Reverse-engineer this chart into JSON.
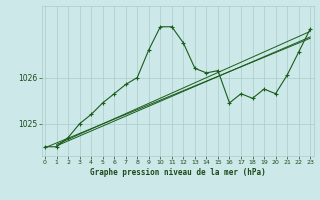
{
  "xlabel": "Graphe pression niveau de la mer (hPa)",
  "background_color": "#cce8e8",
  "grid_color": "#aacccc",
  "line_color": "#1a5c1a",
  "text_color": "#1a4a1a",
  "x_ticks": [
    0,
    1,
    2,
    3,
    4,
    5,
    6,
    7,
    8,
    9,
    10,
    11,
    12,
    13,
    14,
    15,
    16,
    17,
    18,
    19,
    20,
    21,
    22,
    23
  ],
  "y_ticks": [
    1025,
    1026
  ],
  "ylim": [
    1024.3,
    1027.55
  ],
  "xlim": [
    -0.3,
    23.3
  ],
  "main_x": [
    0,
    1,
    2,
    3,
    4,
    5,
    6,
    7,
    8,
    9,
    10,
    11,
    12,
    13,
    14,
    15,
    16,
    17,
    18,
    19,
    20,
    21,
    22,
    23
  ],
  "main_y": [
    1024.5,
    1024.5,
    1024.7,
    1025.0,
    1025.2,
    1025.45,
    1025.65,
    1025.85,
    1026.0,
    1026.6,
    1027.1,
    1027.1,
    1026.75,
    1026.2,
    1026.1,
    1026.15,
    1025.45,
    1025.65,
    1025.55,
    1025.75,
    1025.65,
    1026.05,
    1026.55,
    1027.05
  ],
  "trend1_x": [
    0,
    23
  ],
  "trend1_y": [
    1024.48,
    1026.85
  ],
  "trend2_x": [
    1,
    23
  ],
  "trend2_y": [
    1024.52,
    1026.88
  ],
  "trend3_x": [
    1,
    23
  ],
  "trend3_y": [
    1024.55,
    1027.0
  ]
}
